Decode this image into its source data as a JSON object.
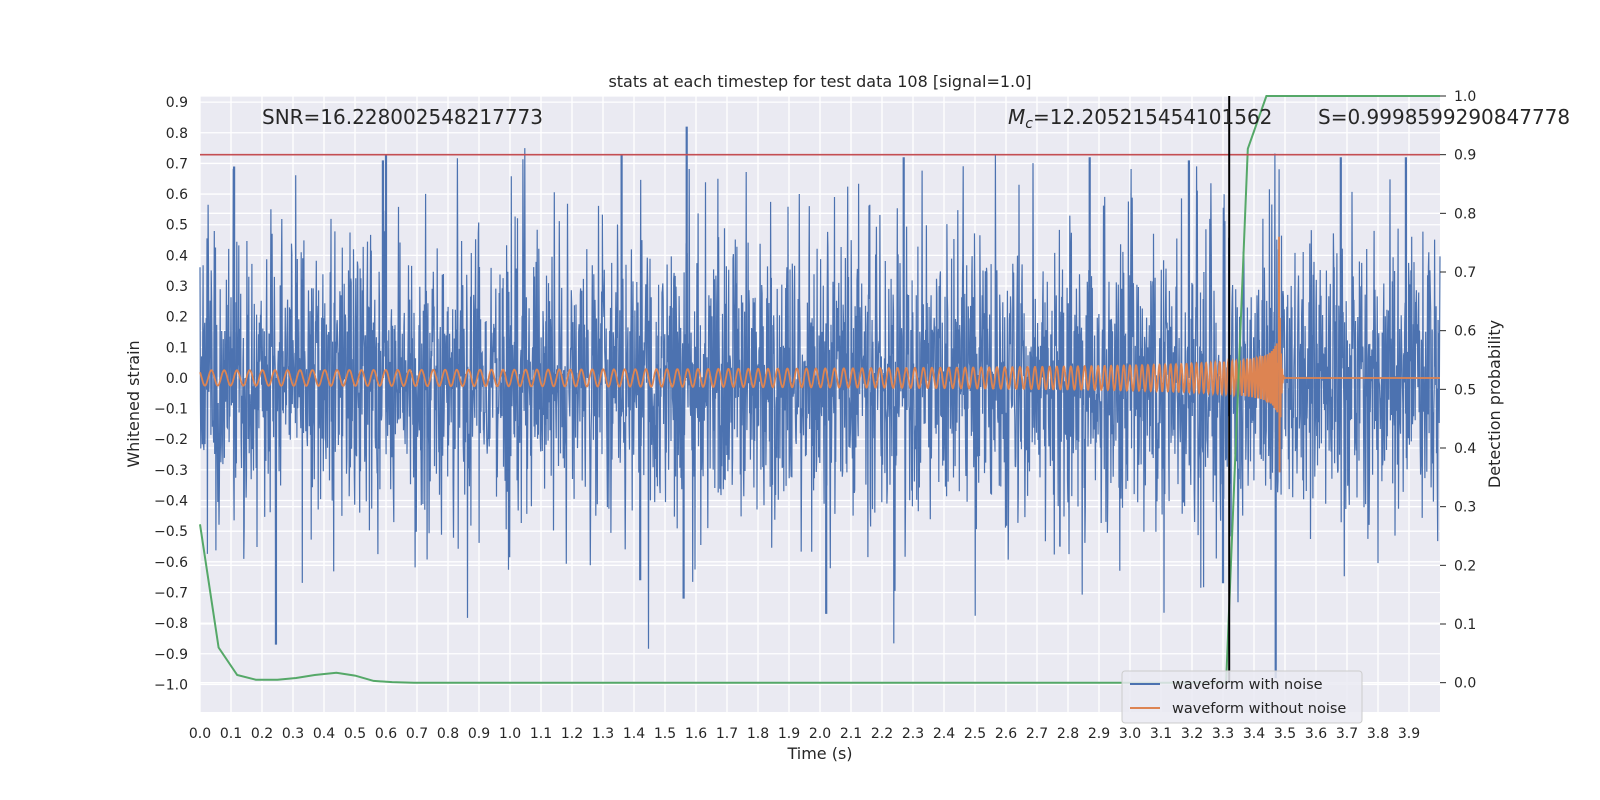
{
  "chart_data": {
    "type": "line",
    "title": "stats at each timestep for test data 108 [signal=1.0]",
    "xlabel": "Time (s)",
    "ylabel": "Whitened strain",
    "y2label": "Detection probability",
    "xlim": [
      0.0,
      4.0
    ],
    "ylim": [
      -1.09,
      0.92
    ],
    "y2lim": [
      -0.05,
      1.0
    ],
    "x_ticks": [
      "0.0",
      "0.1",
      "0.2",
      "0.3",
      "0.4",
      "0.5",
      "0.6",
      "0.7",
      "0.8",
      "0.9",
      "1.0",
      "1.1",
      "1.2",
      "1.3",
      "1.4",
      "1.5",
      "1.6",
      "1.7",
      "1.8",
      "1.9",
      "2.0",
      "2.1",
      "2.2",
      "2.3",
      "2.4",
      "2.5",
      "2.6",
      "2.7",
      "2.8",
      "2.9",
      "3.0",
      "3.1",
      "3.2",
      "3.3",
      "3.4",
      "3.5",
      "3.6",
      "3.7",
      "3.8",
      "3.9"
    ],
    "y_ticks": [
      "0.9",
      "0.8",
      "0.7",
      "0.6",
      "0.5",
      "0.4",
      "0.3",
      "0.2",
      "0.1",
      "0.0",
      "−0.1",
      "−0.2",
      "−0.3",
      "−0.4",
      "−0.5",
      "−0.6",
      "−0.7",
      "−0.8",
      "−0.9",
      "−1.0"
    ],
    "y2_ticks": [
      "1.0",
      "0.9",
      "0.8",
      "0.7",
      "0.6",
      "0.5",
      "0.4",
      "0.3",
      "0.2",
      "0.1",
      "0.0"
    ],
    "annotations": {
      "snr": "SNR=16.228002548217773",
      "mc_symbol": "M",
      "mc_subscript": "c",
      "mc_value": "=12.205215454101562",
      "s": "S=0.9998599290847778"
    },
    "threshold": 0.9,
    "merger_time": 3.32,
    "series": [
      {
        "name": "waveform with noise",
        "color": "#4c72b0",
        "axis": "left",
        "noise_sigma": 0.24,
        "spikes": [
          [
            0.245,
            -0.87
          ],
          [
            1.57,
            0.82
          ],
          [
            3.47,
            -0.98
          ],
          [
            1.42,
            -0.66
          ],
          [
            1.56,
            -0.72
          ],
          [
            2.02,
            -0.77
          ],
          [
            0.6,
            0.73
          ],
          [
            0.11,
            0.69
          ],
          [
            0.59,
            0.71
          ],
          [
            1.36,
            0.73
          ],
          [
            2.27,
            0.72
          ],
          [
            2.87,
            0.72
          ],
          [
            3.19,
            0.71
          ],
          [
            3.68,
            0.72
          ],
          [
            3.89,
            0.72
          ],
          [
            3.3,
            -0.67
          ]
        ]
      },
      {
        "name": "waveform without noise",
        "color": "#dd8452",
        "axis": "left",
        "chirp": {
          "t_merge": 3.48,
          "f0": 24,
          "amp0": 0.025,
          "amp_peak": 0.6
        }
      },
      {
        "name": "Detection probability",
        "color": "#55a868",
        "axis": "right",
        "x": [
          0.0,
          0.06,
          0.12,
          0.18,
          0.25,
          0.31,
          0.37,
          0.44,
          0.5,
          0.56,
          0.62,
          0.69,
          0.75,
          1.5,
          2.5,
          3.25,
          3.31,
          3.38,
          3.44,
          3.5,
          4.0
        ],
        "values": [
          0.27,
          0.06,
          0.013,
          0.005,
          0.005,
          0.008,
          0.013,
          0.017,
          0.012,
          0.003,
          0.001,
          0.0,
          0.0,
          0.0,
          0.0,
          0.0,
          0.0,
          0.91,
          1.0,
          1.0,
          1.0
        ]
      }
    ],
    "legend": {
      "position": "lower-right",
      "entries": [
        {
          "label": "waveform with noise",
          "color": "#4c72b0"
        },
        {
          "label": "waveform without noise",
          "color": "#dd8452"
        }
      ]
    }
  }
}
